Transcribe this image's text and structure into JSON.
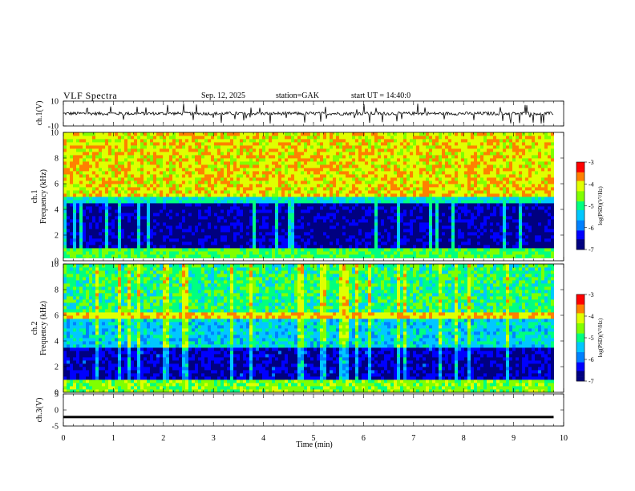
{
  "header": {
    "title": "VLF Spectra",
    "date": "Sep. 12, 2025",
    "station": "station=GAK",
    "start": "start UT = 14:40:0"
  },
  "chart_data": [
    {
      "type": "line",
      "title": "",
      "ylabel": "ch.1(V)",
      "ylim": [
        -10,
        10
      ],
      "yticks": [
        "10",
        "-10"
      ],
      "description": "waveform, mostly near -0 with spikes"
    },
    {
      "type": "heatmap",
      "ylabel_top": "ch.1",
      "ylabel": "Frequency (kHz)",
      "ylim": [
        0,
        10
      ],
      "yticks": [
        "0",
        "2",
        "4",
        "6",
        "8",
        "10"
      ],
      "colorbar": {
        "label": "log(PSD)(V²/Hz)",
        "range": [
          -7,
          -3
        ],
        "ticks": [
          "-3",
          "-4",
          "-5",
          "-6",
          "-7"
        ]
      }
    },
    {
      "type": "heatmap",
      "ylabel_top": "ch.2",
      "ylabel": "Frequency (kHz)",
      "ylim": [
        0,
        10
      ],
      "yticks": [
        "0",
        "2",
        "4",
        "6",
        "8",
        "10"
      ],
      "colorbar": {
        "label": "log(PSD)(V²/Hz)",
        "range": [
          -7,
          -3
        ],
        "ticks": [
          "-3",
          "-4",
          "-5",
          "-6",
          "-7"
        ]
      }
    },
    {
      "type": "line",
      "ylabel": "ch.3(V)",
      "ylim": [
        -5,
        5
      ],
      "yticks": [
        "5",
        "0",
        "-5"
      ],
      "level": -2.2
    }
  ],
  "xaxis": {
    "label": "Time (min)",
    "range": [
      0,
      10
    ],
    "ticks": [
      "0",
      "1",
      "2",
      "3",
      "4",
      "5",
      "6",
      "7",
      "8",
      "9",
      "10"
    ],
    "data_end": 9.8
  },
  "colors": [
    "#000080",
    "#0000ff",
    "#0080ff",
    "#00c8ff",
    "#00ff80",
    "#80ff00",
    "#e0ff00",
    "#ff8000",
    "#ff0000"
  ]
}
